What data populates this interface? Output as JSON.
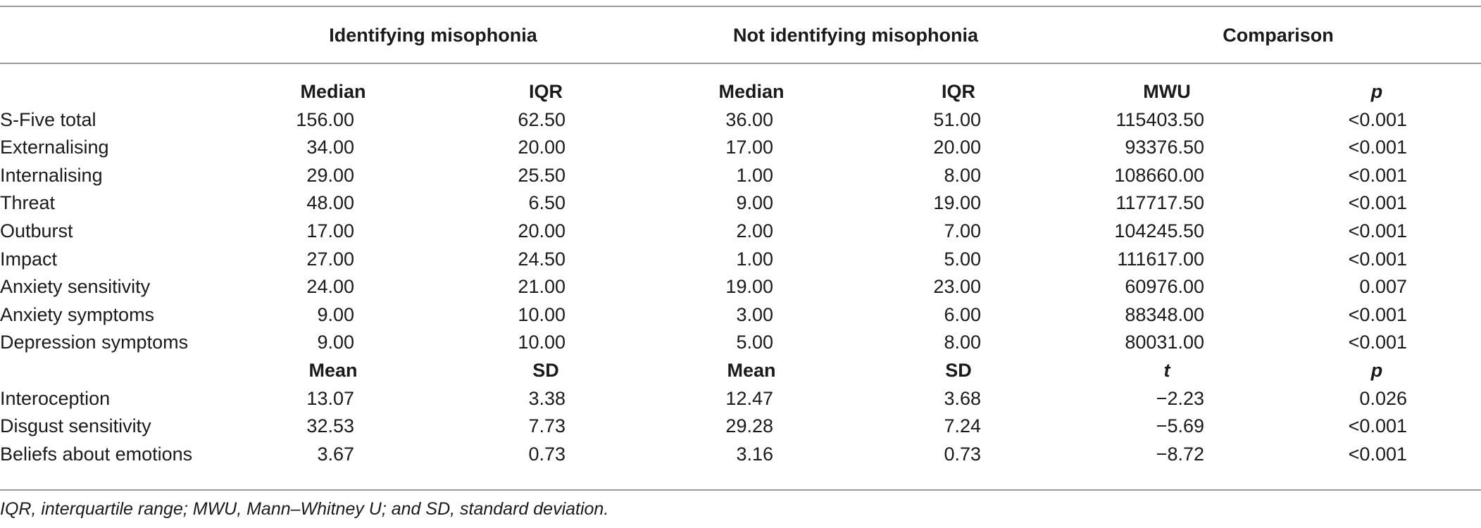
{
  "table": {
    "group_headers": [
      "Identifying misophonia",
      "Not identifying misophonia",
      "Comparison"
    ],
    "subheaders_1": [
      "Median",
      "IQR",
      "Median",
      "IQR",
      "MWU",
      "p"
    ],
    "rows_1": [
      {
        "label": "S-Five total",
        "values": [
          "156.00",
          "62.50",
          "36.00",
          "51.00",
          "115403.50",
          "<0.001"
        ]
      },
      {
        "label": "Externalising",
        "values": [
          "34.00",
          "20.00",
          "17.00",
          "20.00",
          "93376.50",
          "<0.001"
        ]
      },
      {
        "label": "Internalising",
        "values": [
          "29.00",
          "25.50",
          "1.00",
          "8.00",
          "108660.00",
          "<0.001"
        ]
      },
      {
        "label": "Threat",
        "values": [
          "48.00",
          "6.50",
          "9.00",
          "19.00",
          "117717.50",
          "<0.001"
        ]
      },
      {
        "label": "Outburst",
        "values": [
          "17.00",
          "20.00",
          "2.00",
          "7.00",
          "104245.50",
          "<0.001"
        ]
      },
      {
        "label": "Impact",
        "values": [
          "27.00",
          "24.50",
          "1.00",
          "5.00",
          "111617.00",
          "<0.001"
        ]
      },
      {
        "label": "Anxiety sensitivity",
        "values": [
          "24.00",
          "21.00",
          "19.00",
          "23.00",
          "60976.00",
          "0.007"
        ]
      },
      {
        "label": "Anxiety symptoms",
        "values": [
          "9.00",
          "10.00",
          "3.00",
          "6.00",
          "88348.00",
          "<0.001"
        ]
      },
      {
        "label": "Depression symptoms",
        "values": [
          "9.00",
          "10.00",
          "5.00",
          "8.00",
          "80031.00",
          "<0.001"
        ]
      }
    ],
    "subheaders_2": [
      "Mean",
      "SD",
      "Mean",
      "SD",
      "t",
      "p"
    ],
    "rows_2": [
      {
        "label": "Interoception",
        "values": [
          "13.07",
          "3.38",
          "12.47",
          "3.68",
          "−2.23",
          "0.026"
        ]
      },
      {
        "label": "Disgust sensitivity",
        "values": [
          "32.53",
          "7.73",
          "29.28",
          "7.24",
          "−5.69",
          "<0.001"
        ]
      },
      {
        "label": "Beliefs about emotions",
        "values": [
          "3.67",
          "0.73",
          "3.16",
          "0.73",
          "−8.72",
          "<0.001"
        ]
      }
    ],
    "footnote": "IQR, interquartile range; MWU, Mann–Whitney U; and SD, standard deviation."
  }
}
